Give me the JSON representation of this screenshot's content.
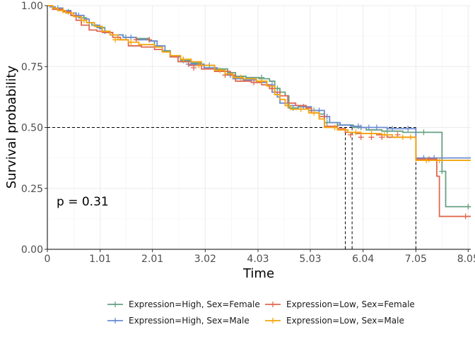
{
  "chart_data": {
    "type": "line",
    "subtype": "kaplan-meier",
    "xlabel": "Time",
    "ylabel": "Survival probability",
    "xlim": [
      0,
      8.1
    ],
    "ylim": [
      0,
      1.0
    ],
    "x_ticks": [
      0,
      1.01,
      2.01,
      3.02,
      4.03,
      5.03,
      6.04,
      7.05,
      8.05
    ],
    "x_tick_labels": [
      "0",
      "1.01",
      "2.01",
      "3.02",
      "4.03",
      "5.03",
      "6.04",
      "7.05",
      "8.05"
    ],
    "y_ticks": [
      0,
      0.25,
      0.5,
      0.75,
      1.0
    ],
    "y_tick_labels": [
      "0.00",
      "0.25",
      "0.50",
      "0.75",
      "1.00"
    ],
    "grid": true,
    "legend_position": "bottom",
    "annotation": "p = 0.31",
    "median_line_y": 0.5,
    "median_times": [
      5.7,
      5.83,
      7.05
    ],
    "series": [
      {
        "name": "Expression=High, Sex=Female",
        "color": "#66a182",
        "steps": [
          [
            0,
            1.0
          ],
          [
            0.1,
            0.99
          ],
          [
            0.2,
            0.98
          ],
          [
            0.3,
            0.975
          ],
          [
            0.45,
            0.96
          ],
          [
            0.6,
            0.95
          ],
          [
            0.75,
            0.93
          ],
          [
            0.85,
            0.92
          ],
          [
            0.95,
            0.91
          ],
          [
            1.1,
            0.89
          ],
          [
            1.25,
            0.88
          ],
          [
            1.45,
            0.87
          ],
          [
            1.7,
            0.865
          ],
          [
            1.95,
            0.855
          ],
          [
            2.05,
            0.835
          ],
          [
            2.2,
            0.815
          ],
          [
            2.35,
            0.79
          ],
          [
            2.55,
            0.775
          ],
          [
            2.75,
            0.765
          ],
          [
            2.95,
            0.755
          ],
          [
            3.2,
            0.74
          ],
          [
            3.45,
            0.725
          ],
          [
            3.6,
            0.71
          ],
          [
            3.8,
            0.705
          ],
          [
            4.05,
            0.7
          ],
          [
            4.25,
            0.69
          ],
          [
            4.35,
            0.66
          ],
          [
            4.45,
            0.645
          ],
          [
            4.55,
            0.63
          ],
          [
            4.62,
            0.58
          ],
          [
            4.8,
            0.575
          ],
          [
            5.0,
            0.57
          ],
          [
            5.2,
            0.555
          ],
          [
            5.3,
            0.52
          ],
          [
            5.55,
            0.51
          ],
          [
            5.85,
            0.5
          ],
          [
            6.1,
            0.49
          ],
          [
            6.4,
            0.485
          ],
          [
            6.8,
            0.48
          ],
          [
            7.55,
            0.32
          ],
          [
            7.62,
            0.175
          ],
          [
            8.1,
            0.175
          ]
        ],
        "censor": [
          [
            0.4,
            0.975
          ],
          [
            0.8,
            0.93
          ],
          [
            1.5,
            0.87
          ],
          [
            2.6,
            0.775
          ],
          [
            3.1,
            0.755
          ],
          [
            3.6,
            0.71
          ],
          [
            4.1,
            0.705
          ],
          [
            4.4,
            0.66
          ],
          [
            4.7,
            0.58
          ],
          [
            5.1,
            0.57
          ],
          [
            5.35,
            0.52
          ],
          [
            6.0,
            0.5
          ],
          [
            6.5,
            0.485
          ],
          [
            7.2,
            0.48
          ],
          [
            7.55,
            0.32
          ],
          [
            8.05,
            0.175
          ]
        ]
      },
      {
        "name": "Expression=High, Sex=Male",
        "color": "#6b8bd3",
        "steps": [
          [
            0,
            1.0
          ],
          [
            0.05,
            0.995
          ],
          [
            0.15,
            0.99
          ],
          [
            0.3,
            0.98
          ],
          [
            0.45,
            0.97
          ],
          [
            0.55,
            0.96
          ],
          [
            0.7,
            0.945
          ],
          [
            0.8,
            0.93
          ],
          [
            0.9,
            0.92
          ],
          [
            1.0,
            0.905
          ],
          [
            1.05,
            0.895
          ],
          [
            1.2,
            0.88
          ],
          [
            1.45,
            0.87
          ],
          [
            1.7,
            0.86
          ],
          [
            1.95,
            0.855
          ],
          [
            2.1,
            0.835
          ],
          [
            2.25,
            0.81
          ],
          [
            2.35,
            0.79
          ],
          [
            2.55,
            0.77
          ],
          [
            2.75,
            0.76
          ],
          [
            3.0,
            0.745
          ],
          [
            3.25,
            0.73
          ],
          [
            3.45,
            0.715
          ],
          [
            3.55,
            0.7
          ],
          [
            3.75,
            0.695
          ],
          [
            4.0,
            0.685
          ],
          [
            4.2,
            0.675
          ],
          [
            4.3,
            0.645
          ],
          [
            4.4,
            0.625
          ],
          [
            4.45,
            0.6
          ],
          [
            4.6,
            0.59
          ],
          [
            4.8,
            0.585
          ],
          [
            5.05,
            0.57
          ],
          [
            5.3,
            0.545
          ],
          [
            5.4,
            0.52
          ],
          [
            5.6,
            0.51
          ],
          [
            5.8,
            0.505
          ],
          [
            6.0,
            0.5
          ],
          [
            6.5,
            0.495
          ],
          [
            7.05,
            0.375
          ],
          [
            8.1,
            0.375
          ]
        ],
        "censor": [
          [
            0.2,
            0.99
          ],
          [
            0.6,
            0.96
          ],
          [
            1.1,
            0.895
          ],
          [
            1.6,
            0.87
          ],
          [
            2.7,
            0.76
          ],
          [
            3.5,
            0.715
          ],
          [
            3.9,
            0.695
          ],
          [
            4.3,
            0.675
          ],
          [
            4.9,
            0.585
          ],
          [
            5.2,
            0.57
          ],
          [
            5.35,
            0.545
          ],
          [
            5.95,
            0.505
          ],
          [
            6.15,
            0.5
          ],
          [
            6.3,
            0.5
          ],
          [
            6.6,
            0.495
          ],
          [
            6.9,
            0.495
          ],
          [
            7.2,
            0.375
          ],
          [
            7.4,
            0.375
          ]
        ]
      },
      {
        "name": "Expression=Low, Sex=Female",
        "color": "#e0684f",
        "steps": [
          [
            0,
            1.0
          ],
          [
            0.1,
            0.985
          ],
          [
            0.3,
            0.975
          ],
          [
            0.45,
            0.96
          ],
          [
            0.55,
            0.94
          ],
          [
            0.65,
            0.92
          ],
          [
            0.8,
            0.9
          ],
          [
            0.95,
            0.895
          ],
          [
            1.05,
            0.89
          ],
          [
            1.25,
            0.87
          ],
          [
            1.4,
            0.86
          ],
          [
            1.55,
            0.835
          ],
          [
            1.8,
            0.83
          ],
          [
            2.05,
            0.82
          ],
          [
            2.2,
            0.81
          ],
          [
            2.35,
            0.79
          ],
          [
            2.5,
            0.77
          ],
          [
            2.7,
            0.755
          ],
          [
            2.95,
            0.74
          ],
          [
            3.2,
            0.73
          ],
          [
            3.5,
            0.715
          ],
          [
            3.6,
            0.69
          ],
          [
            3.9,
            0.685
          ],
          [
            4.1,
            0.675
          ],
          [
            4.25,
            0.66
          ],
          [
            4.35,
            0.645
          ],
          [
            4.45,
            0.63
          ],
          [
            4.6,
            0.6
          ],
          [
            4.75,
            0.59
          ],
          [
            4.95,
            0.58
          ],
          [
            5.05,
            0.56
          ],
          [
            5.2,
            0.545
          ],
          [
            5.3,
            0.505
          ],
          [
            5.55,
            0.495
          ],
          [
            5.7,
            0.48
          ],
          [
            5.9,
            0.475
          ],
          [
            6.3,
            0.47
          ],
          [
            6.5,
            0.46
          ],
          [
            7.05,
            0.37
          ],
          [
            7.45,
            0.3
          ],
          [
            7.5,
            0.135
          ],
          [
            8.1,
            0.135
          ]
        ],
        "censor": [
          [
            1.7,
            0.86
          ],
          [
            1.95,
            0.86
          ],
          [
            2.8,
            0.745
          ],
          [
            3.4,
            0.715
          ],
          [
            3.95,
            0.685
          ],
          [
            4.3,
            0.66
          ],
          [
            5.3,
            0.545
          ],
          [
            5.8,
            0.47
          ],
          [
            6.0,
            0.46
          ],
          [
            6.2,
            0.46
          ],
          [
            6.4,
            0.46
          ],
          [
            6.7,
            0.47
          ],
          [
            7.3,
            0.37
          ],
          [
            8.0,
            0.135
          ]
        ]
      },
      {
        "name": "Expression=Low, Sex=Male",
        "color": "#f5a50c",
        "steps": [
          [
            0,
            1.0
          ],
          [
            0.1,
            0.99
          ],
          [
            0.2,
            0.98
          ],
          [
            0.35,
            0.97
          ],
          [
            0.5,
            0.955
          ],
          [
            0.65,
            0.94
          ],
          [
            0.75,
            0.93
          ],
          [
            0.9,
            0.915
          ],
          [
            1.05,
            0.895
          ],
          [
            1.2,
            0.88
          ],
          [
            1.35,
            0.86
          ],
          [
            1.55,
            0.85
          ],
          [
            1.75,
            0.84
          ],
          [
            2.05,
            0.83
          ],
          [
            2.2,
            0.81
          ],
          [
            2.35,
            0.795
          ],
          [
            2.55,
            0.78
          ],
          [
            2.75,
            0.77
          ],
          [
            2.95,
            0.755
          ],
          [
            3.2,
            0.735
          ],
          [
            3.4,
            0.72
          ],
          [
            3.55,
            0.705
          ],
          [
            3.75,
            0.7
          ],
          [
            4.0,
            0.69
          ],
          [
            4.2,
            0.67
          ],
          [
            4.35,
            0.635
          ],
          [
            4.45,
            0.615
          ],
          [
            4.55,
            0.59
          ],
          [
            4.65,
            0.575
          ],
          [
            5.0,
            0.56
          ],
          [
            5.2,
            0.535
          ],
          [
            5.3,
            0.5
          ],
          [
            5.55,
            0.49
          ],
          [
            5.75,
            0.48
          ],
          [
            6.0,
            0.475
          ],
          [
            6.4,
            0.47
          ],
          [
            6.6,
            0.46
          ],
          [
            7.05,
            0.365
          ],
          [
            8.1,
            0.365
          ]
        ],
        "censor": [
          [
            0.3,
            0.98
          ],
          [
            0.7,
            0.94
          ],
          [
            1.3,
            0.86
          ],
          [
            1.6,
            0.85
          ],
          [
            2.6,
            0.78
          ],
          [
            2.9,
            0.755
          ],
          [
            3.3,
            0.735
          ],
          [
            3.7,
            0.705
          ],
          [
            4.1,
            0.69
          ],
          [
            4.6,
            0.59
          ],
          [
            4.85,
            0.575
          ],
          [
            5.1,
            0.56
          ],
          [
            5.5,
            0.5
          ],
          [
            5.9,
            0.48
          ],
          [
            6.2,
            0.475
          ],
          [
            6.45,
            0.47
          ],
          [
            6.8,
            0.46
          ],
          [
            6.95,
            0.46
          ],
          [
            7.25,
            0.365
          ],
          [
            7.5,
            0.365
          ]
        ]
      }
    ]
  }
}
